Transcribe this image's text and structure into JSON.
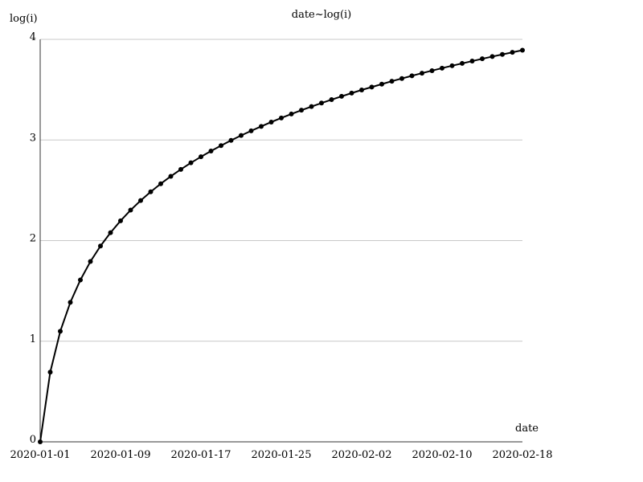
{
  "chart_data": {
    "type": "line",
    "title": "date~log(i)",
    "xlabel": "date",
    "ylabel": "log(i)",
    "x_start": "2020-01-01",
    "x_end": "2020-02-18",
    "xlim": [
      "2020-01-01",
      "2020-02-18"
    ],
    "ylim": [
      0,
      4
    ],
    "y_ticks": [
      "0",
      "1",
      "2",
      "3",
      "4"
    ],
    "x_ticks": [
      "2020-01-01",
      "2020-01-09",
      "2020-01-17",
      "2020-01-25",
      "2020-02-02",
      "2020-02-10",
      "2020-02-18"
    ],
    "grid": "horizontal",
    "colors": {
      "line": "#000000",
      "grid": "#c8c8c8",
      "axis": "#333333"
    },
    "series": [
      {
        "x": [
          "2020-01-01",
          "2020-01-02",
          "2020-01-03",
          "2020-01-04",
          "2020-01-05",
          "2020-01-06",
          "2020-01-07",
          "2020-01-08",
          "2020-01-09",
          "2020-01-10",
          "2020-01-11",
          "2020-01-12",
          "2020-01-13",
          "2020-01-14",
          "2020-01-15",
          "2020-01-16",
          "2020-01-17",
          "2020-01-18",
          "2020-01-19",
          "2020-01-20",
          "2020-01-21",
          "2020-01-22",
          "2020-01-23",
          "2020-01-24",
          "2020-01-25",
          "2020-01-26",
          "2020-01-27",
          "2020-01-28",
          "2020-01-29",
          "2020-01-30",
          "2020-01-31",
          "2020-02-01",
          "2020-02-02",
          "2020-02-03",
          "2020-02-04",
          "2020-02-05",
          "2020-02-06",
          "2020-02-07",
          "2020-02-08",
          "2020-02-09",
          "2020-02-10",
          "2020-02-11",
          "2020-02-12",
          "2020-02-13",
          "2020-02-14",
          "2020-02-15",
          "2020-02-16",
          "2020-02-17",
          "2020-02-18"
        ],
        "y": [
          0,
          0.693,
          1.099,
          1.386,
          1.609,
          1.792,
          1.946,
          2.079,
          2.197,
          2.303,
          2.398,
          2.485,
          2.565,
          2.639,
          2.708,
          2.773,
          2.833,
          2.89,
          2.944,
          2.996,
          3.045,
          3.091,
          3.135,
          3.178,
          3.219,
          3.258,
          3.296,
          3.332,
          3.367,
          3.401,
          3.434,
          3.466,
          3.497,
          3.526,
          3.555,
          3.584,
          3.611,
          3.638,
          3.664,
          3.689,
          3.714,
          3.738,
          3.761,
          3.784,
          3.807,
          3.829,
          3.85,
          3.871,
          3.892
        ]
      }
    ]
  }
}
